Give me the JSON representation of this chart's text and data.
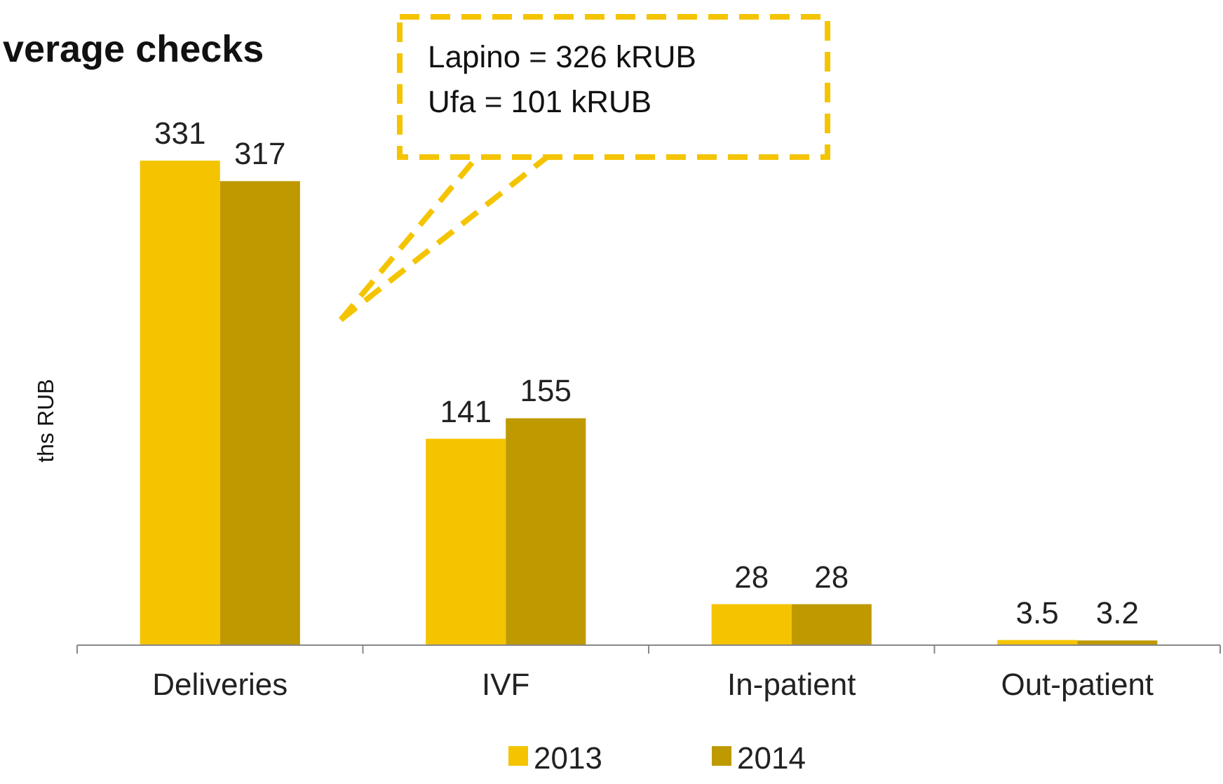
{
  "chart_data": {
    "type": "bar",
    "title": "verage checks",
    "ylabel": "ths RUB",
    "categories": [
      "Deliveries",
      "IVF",
      "In-patient",
      "Out-patient"
    ],
    "series": [
      {
        "name": "2013",
        "color": "#f5c400",
        "values": [
          331,
          141,
          28,
          3.5
        ]
      },
      {
        "name": "2014",
        "color": "#bf9900",
        "values": [
          317,
          155,
          28,
          3.2
        ]
      }
    ],
    "data_labels": true,
    "legend": "bottom",
    "grid": false,
    "annotations": [
      "Lapino = 326 kRUB",
      "Ufa = 101 kRUB"
    ]
  }
}
